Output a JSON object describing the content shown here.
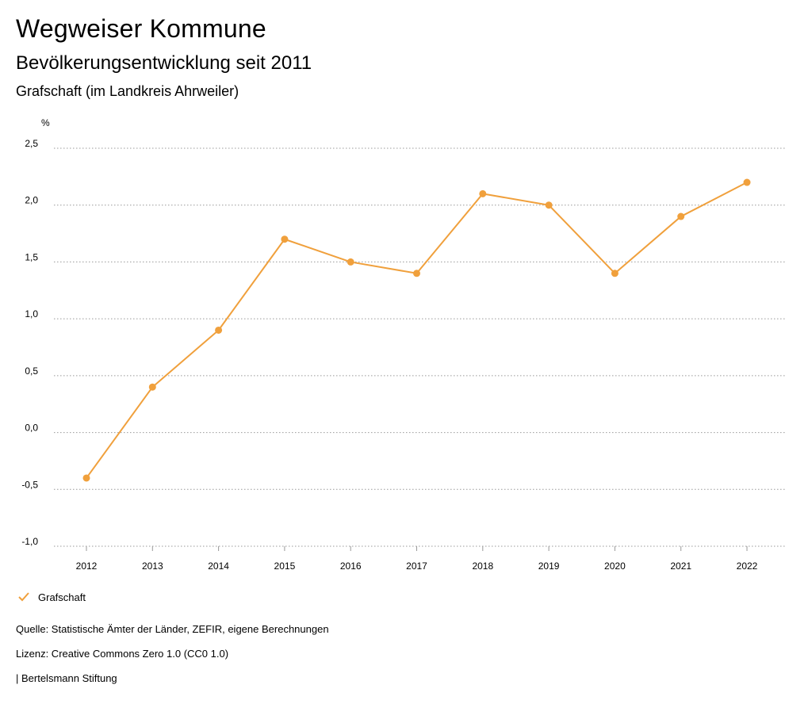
{
  "header": {
    "title": "Wegweiser Kommune",
    "subtitle": "Bevölkerungsentwicklung seit 2011",
    "region": "Grafschaft (im Landkreis Ahrweiler)"
  },
  "chart_data": {
    "type": "line",
    "unit_label": "%",
    "categories": [
      "2012",
      "2013",
      "2014",
      "2015",
      "2016",
      "2017",
      "2018",
      "2019",
      "2020",
      "2021",
      "2022"
    ],
    "series": [
      {
        "name": "Grafschaft",
        "color": "#f0a03c",
        "values": [
          -0.4,
          0.4,
          0.9,
          1.7,
          1.5,
          1.4,
          2.1,
          2.0,
          1.4,
          1.9,
          2.2
        ]
      }
    ],
    "ylim": [
      -1.0,
      2.5
    ],
    "yticks": [
      2.5,
      2.0,
      1.5,
      1.0,
      0.5,
      0.0,
      -0.5,
      -1.0
    ],
    "ytick_labels": [
      "2,5",
      "2,0",
      "1,5",
      "1,0",
      "0,5",
      "0,0",
      "-0,5",
      "-1,0"
    ],
    "grid": true,
    "legend_position": "bottom-left"
  },
  "legend": {
    "label": "Grafschaft"
  },
  "footer": {
    "source": "Quelle: Statistische Ämter der Länder, ZEFIR, eigene Berechnungen",
    "license": "Lizenz: Creative Commons Zero 1.0 (CC0 1.0)",
    "publisher": "| Bertelsmann Stiftung"
  }
}
